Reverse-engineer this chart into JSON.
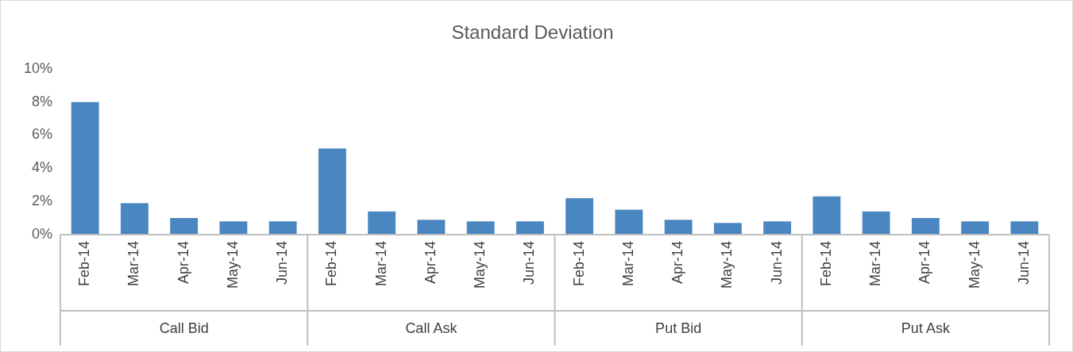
{
  "chart_data": {
    "type": "bar",
    "title": "Standard Deviation",
    "categories": [
      "Feb-14",
      "Mar-14",
      "Apr-14",
      "May-14",
      "Jun-14",
      "Feb-14",
      "Mar-14",
      "Apr-14",
      "May-14",
      "Jun-14",
      "Feb-14",
      "Mar-14",
      "Apr-14",
      "May-14",
      "Jun-14",
      "Feb-14",
      "Mar-14",
      "Apr-14",
      "May-14",
      "Jun-14"
    ],
    "series": [
      {
        "color": "#4a86c0",
        "values": [
          8.0,
          1.9,
          1.0,
          0.8,
          0.8,
          5.2,
          1.4,
          0.9,
          0.8,
          0.8,
          2.2,
          1.5,
          0.9,
          0.7,
          0.8,
          2.3,
          1.4,
          1.0,
          0.8,
          0.8
        ]
      }
    ],
    "annotations": [
      "Call Bid",
      "Call Ask",
      "Put Bid",
      "Put Ask"
    ],
    "ylim": [
      0,
      10
    ],
    "yticks": [
      {
        "value": 0,
        "label": "0%"
      },
      {
        "value": 2,
        "label": "2%"
      },
      {
        "value": 4,
        "label": "4%"
      },
      {
        "value": 6,
        "label": "6%"
      },
      {
        "value": 8,
        "label": "8%"
      },
      {
        "value": 10,
        "label": "10%"
      }
    ],
    "grid": false,
    "legend": false
  }
}
